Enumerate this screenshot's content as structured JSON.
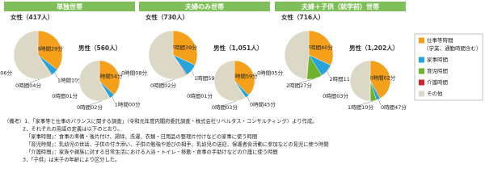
{
  "panels": [
    "単独世帯",
    "夫婦のみ世帯",
    "夫婦＋子供（就学前）世帯"
  ],
  "legend": {
    "categories": [
      "仕事等時間",
      "家事時間",
      "育児時間",
      "介護時間",
      "その他"
    ],
    "colors": [
      "#f5a01a",
      "#27a4da",
      "#6cb42c",
      "#d3232b",
      "#dcd8c6"
    ],
    "note": "（学業、通勤時間含む）"
  },
  "chart_data": [
    {
      "type": "pie",
      "title": "女性（417人）",
      "values": [
        509,
        70,
        4,
        6,
        851
      ],
      "value_labels": [
        "8時間29分",
        "1時間10分",
        "0時間04分",
        "0時間06分",
        null
      ]
    },
    {
      "type": "pie",
      "title": "男性（560人）",
      "values": [
        534,
        60,
        2,
        1,
        843
      ],
      "value_labels": [
        "8時間54分",
        "1時間00分",
        "0時間02分",
        "0時間01分",
        null
      ]
    },
    {
      "type": "pie",
      "title": "女性（730人）",
      "values": [
        459,
        119,
        2,
        8,
        852
      ],
      "value_labels": [
        "7時間39分",
        "1時間59分",
        "0時間02分",
        "0時間08分",
        null
      ]
    },
    {
      "type": "pie",
      "title": "男性（1,051人）",
      "values": [
        539,
        45,
        3,
        1,
        852
      ],
      "value_labels": [
        "8時間59分",
        "0時間45分",
        "0時間03分",
        "0時間01分",
        null
      ]
    },
    {
      "type": "pie",
      "title": "女性（716人）",
      "values": [
        460,
        131,
        147,
        5,
        697
      ],
      "value_labels": [
        "7時間40分",
        "2時間11分",
        "2時間27分",
        "0時間05分",
        null
      ]
    },
    {
      "type": "pie",
      "title": "男性（1,202人）",
      "values": [
        602,
        47,
        70,
        3,
        718
      ],
      "value_labels": [
        "10時間02分",
        "0時間47分",
        "1時間10分",
        "0時間03分",
        null
      ]
    }
  ],
  "notes": [
    "（備考）1．「家事等と仕事のバランスに関する調査」（令和元年度内閣府委託調査・株式会社リベルタス・コンサルティング）より作成。",
    "2．それぞれの用語の定義は以下のとおり。",
    "「家事時間」：食事の準備・後片付け、掃除、洗濯、衣類・日用品の整理片付けなどの家事に使う時間",
    "「育児時間」：乳幼児の世話、子供の付き添い、子供の勉強や遊びの相手、乳幼児の送迎、保護者会活動に参加などの育児に使う時間",
    "「介護時間」：家族や親族に対する日常生活における入浴・トイレ・移動・食事の手助けなどの介護に使う時間",
    "3．「子供」は末子の年齢により区分した。"
  ]
}
